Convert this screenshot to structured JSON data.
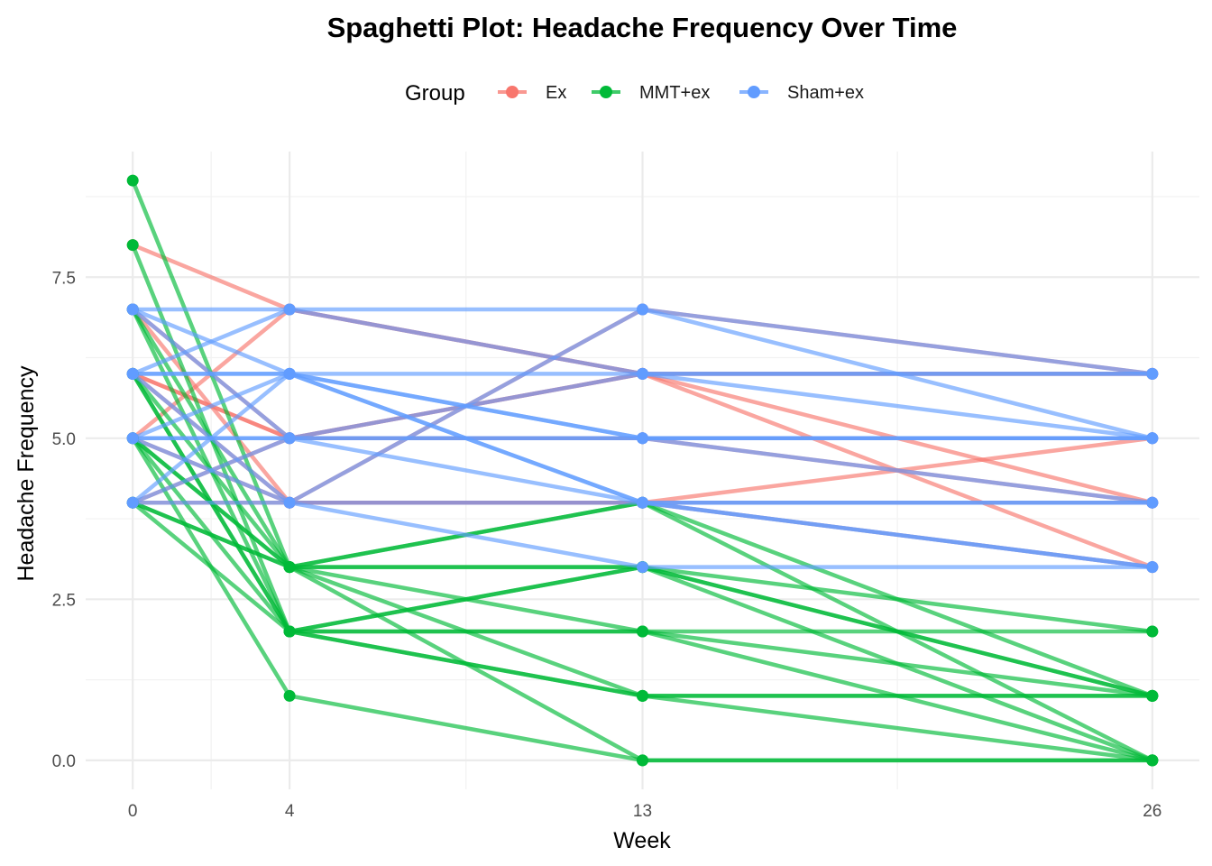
{
  "colors": {
    "Ex": "#F8766D",
    "MMT+ex": "#00BA38",
    "Sham+ex": "#619CFF"
  },
  "chart_data": {
    "type": "line",
    "title": "Spaghetti Plot: Headache Frequency Over Time",
    "xlabel": "Week",
    "ylabel": "Headache Frequency",
    "x": [
      0,
      4,
      13,
      26
    ],
    "x_ticks": [
      "0",
      "4",
      "13",
      "26"
    ],
    "y_ticks": [
      "0.0",
      "2.5",
      "5.0",
      "7.5"
    ],
    "xlim": [
      -1.2,
      27.2
    ],
    "ylim": [
      -0.45,
      9.45
    ],
    "grid": true,
    "legend": {
      "title": "Group",
      "placement": "top",
      "entries": [
        "Ex",
        "MMT+ex",
        "Sham+ex"
      ]
    },
    "series": [
      {
        "group": "Ex",
        "values": [
          8,
          7,
          6,
          4
        ]
      },
      {
        "group": "Ex",
        "values": [
          7,
          4,
          7,
          6
        ]
      },
      {
        "group": "Ex",
        "values": [
          6,
          5,
          5,
          5
        ]
      },
      {
        "group": "Ex",
        "values": [
          5,
          4,
          4,
          3
        ]
      },
      {
        "group": "Ex",
        "values": [
          4,
          4,
          4,
          5
        ]
      },
      {
        "group": "Ex",
        "values": [
          6,
          5,
          6,
          3
        ]
      },
      {
        "group": "Ex",
        "values": [
          5,
          7,
          6,
          6
        ]
      },
      {
        "group": "Ex",
        "values": [
          7,
          5,
          5,
          4
        ]
      },
      {
        "group": "Ex",
        "values": [
          4,
          5,
          6,
          6
        ]
      },
      {
        "group": "Ex",
        "values": [
          6,
          4,
          4,
          4
        ]
      },
      {
        "group": "MMT+ex",
        "values": [
          9,
          3,
          3,
          2
        ]
      },
      {
        "group": "MMT+ex",
        "values": [
          8,
          2,
          2,
          1
        ]
      },
      {
        "group": "MMT+ex",
        "values": [
          7,
          3,
          1,
          0
        ]
      },
      {
        "group": "MMT+ex",
        "values": [
          7,
          2,
          3,
          1
        ]
      },
      {
        "group": "MMT+ex",
        "values": [
          6,
          2,
          1,
          1
        ]
      },
      {
        "group": "MMT+ex",
        "values": [
          6,
          3,
          0,
          0
        ]
      },
      {
        "group": "MMT+ex",
        "values": [
          5,
          3,
          2,
          0
        ]
      },
      {
        "group": "MMT+ex",
        "values": [
          5,
          1,
          0,
          0
        ]
      },
      {
        "group": "MMT+ex",
        "values": [
          5,
          2,
          2,
          2
        ]
      },
      {
        "group": "MMT+ex",
        "values": [
          4,
          3,
          4,
          1
        ]
      },
      {
        "group": "MMT+ex",
        "values": [
          4,
          2,
          1,
          1
        ]
      },
      {
        "group": "MMT+ex",
        "values": [
          4,
          3,
          3,
          0
        ]
      },
      {
        "group": "MMT+ex",
        "values": [
          6,
          2,
          3,
          1
        ]
      },
      {
        "group": "MMT+ex",
        "values": [
          5,
          3,
          4,
          0
        ]
      },
      {
        "group": "Sham+ex",
        "values": [
          7,
          6,
          5,
          5
        ]
      },
      {
        "group": "Sham+ex",
        "values": [
          6,
          6,
          6,
          6
        ]
      },
      {
        "group": "Sham+ex",
        "values": [
          6,
          7,
          7,
          5
        ]
      },
      {
        "group": "Sham+ex",
        "values": [
          5,
          6,
          4,
          3
        ]
      },
      {
        "group": "Sham+ex",
        "values": [
          5,
          5,
          5,
          5
        ]
      },
      {
        "group": "Sham+ex",
        "values": [
          4,
          6,
          5,
          4
        ]
      },
      {
        "group": "Sham+ex",
        "values": [
          4,
          4,
          3,
          3
        ]
      },
      {
        "group": "Sham+ex",
        "values": [
          7,
          5,
          4,
          3
        ]
      },
      {
        "group": "Sham+ex",
        "values": [
          6,
          4,
          7,
          6
        ]
      },
      {
        "group": "Sham+ex",
        "values": [
          5,
          4,
          4,
          4
        ]
      },
      {
        "group": "Sham+ex",
        "values": [
          6,
          6,
          4,
          4
        ]
      },
      {
        "group": "Sham+ex",
        "values": [
          5,
          5,
          6,
          6
        ]
      },
      {
        "group": "Sham+ex",
        "values": [
          7,
          7,
          6,
          5
        ]
      },
      {
        "group": "Sham+ex",
        "values": [
          4,
          5,
          5,
          5
        ]
      }
    ]
  }
}
